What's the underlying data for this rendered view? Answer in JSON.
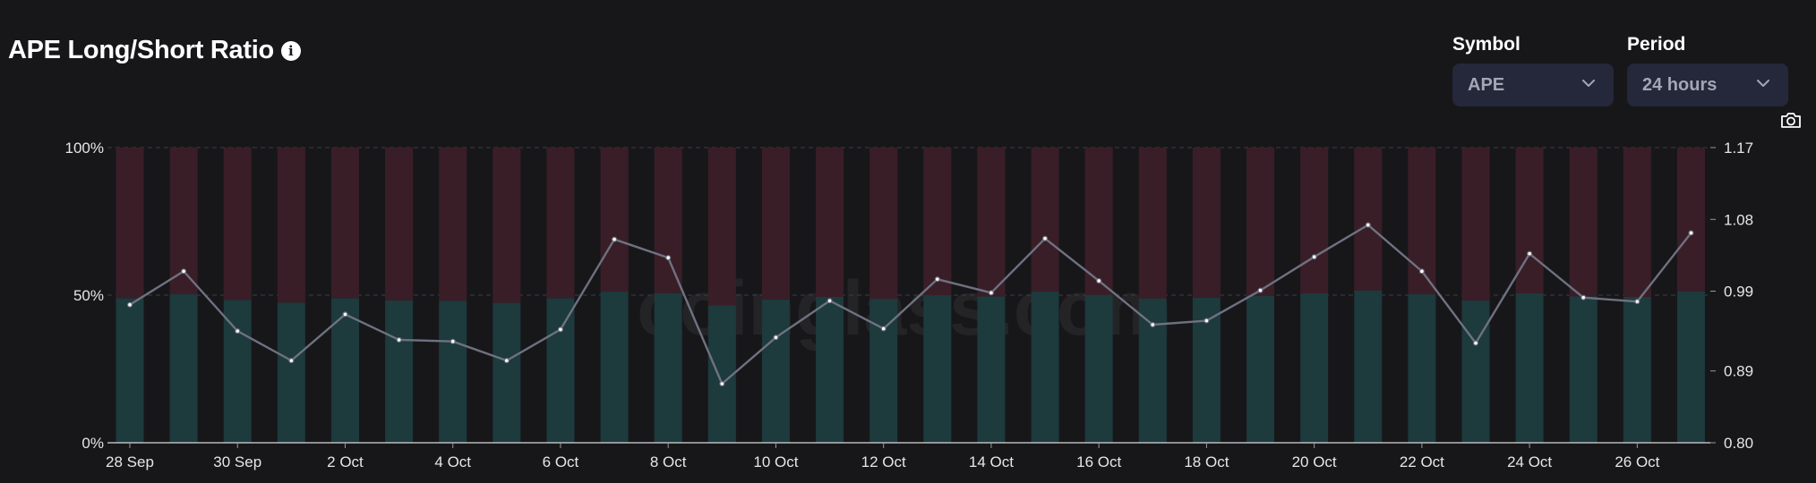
{
  "header": {
    "title": "APE Long/Short Ratio",
    "info_icon": "info-icon"
  },
  "controls": {
    "symbol": {
      "label": "Symbol",
      "value": "APE"
    },
    "period": {
      "label": "Period",
      "value": "24 hours"
    },
    "camera_icon": "camera-icon"
  },
  "watermark": "coinglass.com",
  "colors": {
    "background": "#17171a",
    "long_bar": "#1d3a3d",
    "short_bar": "#3a1e27",
    "ratio_line": "#6e7280",
    "grid": "#3b3d46"
  },
  "chart_data": {
    "type": "bar",
    "stacked_percent": true,
    "categories": [
      "28 Sep",
      "29 Sep",
      "30 Sep",
      "1 Oct",
      "2 Oct",
      "3 Oct",
      "4 Oct",
      "5 Oct",
      "6 Oct",
      "7 Oct",
      "8 Oct",
      "9 Oct",
      "10 Oct",
      "11 Oct",
      "12 Oct",
      "13 Oct",
      "14 Oct",
      "15 Oct",
      "16 Oct",
      "17 Oct",
      "18 Oct",
      "19 Oct",
      "20 Oct",
      "21 Oct",
      "22 Oct",
      "23 Oct",
      "24 Oct",
      "25 Oct",
      "26 Oct",
      "27 Oct"
    ],
    "x_tick_labels": [
      "28 Sep",
      "30 Sep",
      "2 Oct",
      "4 Oct",
      "6 Oct",
      "8 Oct",
      "10 Oct",
      "12 Oct",
      "14 Oct",
      "16 Oct",
      "18 Oct",
      "20 Oct",
      "22 Oct",
      "24 Oct",
      "26 Oct"
    ],
    "series": [
      {
        "values": [
          49.0,
          50.4,
          48.4,
          47.5,
          49.0,
          48.2,
          48.1,
          47.4,
          49.0,
          51.2,
          50.7,
          46.6,
          48.5,
          49.4,
          48.8,
          50.0,
          49.6,
          51.2,
          50.1,
          48.9,
          49.1,
          49.8,
          50.6,
          51.6,
          50.3,
          48.2,
          50.6,
          49.6,
          49.4,
          51.3
        ]
      },
      {
        "values": [
          51.0,
          49.6,
          51.6,
          52.5,
          51.0,
          51.8,
          51.9,
          52.6,
          51.0,
          48.8,
          49.3,
          53.4,
          51.5,
          50.6,
          51.2,
          50.0,
          50.4,
          48.8,
          49.9,
          51.1,
          50.9,
          50.2,
          49.4,
          48.4,
          49.7,
          51.8,
          49.4,
          50.4,
          50.6,
          48.7
        ]
      },
      {
        "axis": "right",
        "type": "line",
        "values": [
          0.973,
          1.015,
          0.94,
          0.903,
          0.961,
          0.929,
          0.927,
          0.903,
          0.942,
          1.055,
          1.032,
          0.874,
          0.932,
          0.978,
          0.943,
          1.005,
          0.988,
          1.056,
          1.003,
          0.948,
          0.953,
          0.991,
          1.033,
          1.073,
          1.015,
          0.925,
          1.037,
          0.982,
          0.977,
          1.063
        ]
      }
    ],
    "left_axis": {
      "ticks": [
        "100%",
        "50%",
        "0%"
      ],
      "ylim": [
        0,
        100
      ]
    },
    "right_axis": {
      "ticks": [
        "1.17",
        "1.08",
        "0.99",
        "0.89",
        "0.80"
      ],
      "ylim": [
        0.8,
        1.17
      ]
    },
    "grid": true
  }
}
